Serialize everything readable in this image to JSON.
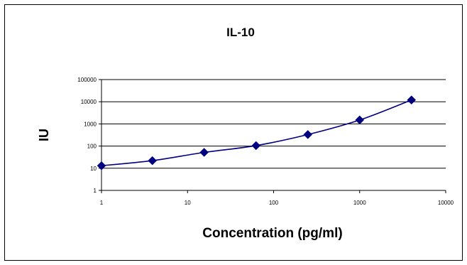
{
  "chart_data": {
    "type": "scatter",
    "title": "IL-10",
    "xlabel": "Concentration (pg/ml)",
    "ylabel": "IU",
    "x_scale": "log",
    "y_scale": "log",
    "xlim": [
      1,
      10000
    ],
    "ylim": [
      1,
      100000
    ],
    "x_ticks": [
      "1",
      "10",
      "100",
      "1000",
      "10000"
    ],
    "y_ticks": [
      "1",
      "10",
      "100",
      "1000",
      "10000",
      "100000"
    ],
    "grid": "horizontal",
    "legend": "none",
    "series": [
      {
        "x": [
          1,
          3.9,
          15.6,
          62.5,
          250,
          1000,
          4000
        ],
        "y": [
          13,
          22,
          52,
          105,
          330,
          1500,
          12000
        ],
        "color": "#000080",
        "line": "smooth"
      }
    ]
  }
}
